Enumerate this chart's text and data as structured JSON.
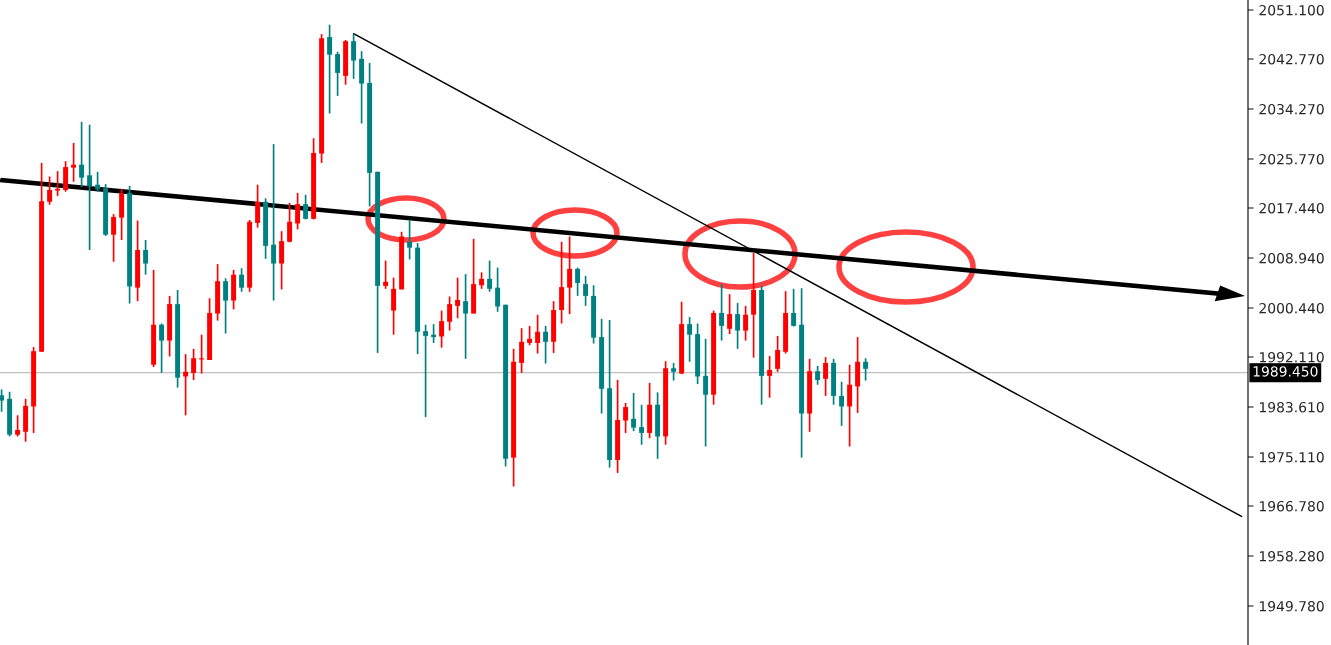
{
  "chart_data": {
    "type": "candlestick",
    "categories": [
      null,
      null,
      null,
      null,
      null,
      null,
      null,
      null,
      null,
      null,
      null,
      null,
      null,
      null,
      null,
      null,
      null,
      null,
      null,
      null,
      null,
      null,
      null,
      null,
      null,
      null,
      null,
      null,
      null,
      null,
      null,
      null,
      null,
      null,
      null,
      null,
      null,
      null,
      null,
      null,
      null,
      null,
      null,
      null,
      null,
      null,
      null,
      null,
      null,
      null,
      null,
      null,
      null,
      null,
      null,
      null,
      null,
      null,
      null,
      null,
      null,
      null,
      null,
      null,
      null,
      null,
      null,
      null,
      null,
      null,
      null,
      null,
      null,
      null,
      null,
      null,
      null,
      null,
      null,
      null,
      null,
      null,
      null,
      null,
      null,
      null,
      null,
      null,
      null,
      null,
      null,
      null,
      null,
      null,
      null,
      null,
      null,
      null,
      null,
      null,
      null,
      null,
      null,
      null,
      null,
      null,
      null,
      null,
      null,
      null,
      null,
      null,
      null,
      null,
      null,
      null,
      null,
      null,
      null,
      null,
      null,
      null,
      null,
      null,
      null,
      null,
      null,
      null,
      null,
      null,
      null,
      null,
      null,
      null,
      null,
      null,
      null,
      null,
      null,
      null,
      null,
      null,
      null,
      null,
      null,
      null,
      null,
      null,
      null,
      null,
      null,
      null,
      null,
      null,
      null,
      null
    ],
    "ohlc": [
      [
        1985.6,
        1986.6,
        1982.8,
        1984.7
      ],
      [
        1985.0,
        1986.2,
        1978.6,
        1978.9
      ],
      [
        1978.9,
        1982.2,
        1978.6,
        1979.7
      ],
      [
        1979.4,
        1985.0,
        1977.7,
        1983.8
      ],
      [
        1983.7,
        1993.8,
        1979.2,
        1993.1
      ],
      [
        1993.0,
        2025.1,
        1993.0,
        2018.6
      ],
      [
        2018.5,
        2022.8,
        2018.0,
        2020.5
      ],
      [
        2020.4,
        2023.7,
        2019.5,
        2020.7
      ],
      [
        2020.5,
        2025.4,
        2020.2,
        2024.4
      ],
      [
        2024.3,
        2028.5,
        2021.9,
        2024.8
      ],
      [
        2024.8,
        2032.1,
        2021.0,
        2022.6
      ],
      [
        2023.0,
        2031.6,
        2010.3,
        2021.1
      ],
      [
        2021.4,
        2023.6,
        2020.2,
        2020.6
      ],
      [
        2020.8,
        2021.5,
        2012.7,
        2012.9
      ],
      [
        2012.9,
        2016.4,
        2008.3,
        2015.9
      ],
      [
        2015.8,
        2020.7,
        2012.0,
        2019.9
      ],
      [
        2020.0,
        2021.2,
        2001.2,
        2004.1
      ],
      [
        2003.9,
        2015.3,
        2001.6,
        2010.3
      ],
      [
        2010.3,
        2012.0,
        2006.1,
        2008.0
      ],
      [
        1990.8,
        2006.9,
        1990.4,
        1997.6
      ],
      [
        1997.6,
        1997.8,
        1989.4,
        1994.9
      ],
      [
        1994.9,
        2002.5,
        1992.2,
        2001.1
      ],
      [
        2001.1,
        2003.5,
        1986.9,
        1988.6
      ],
      [
        1988.8,
        1992.6,
        1982.2,
        1989.6
      ],
      [
        1989.4,
        1993.5,
        1988.2,
        1991.9
      ],
      [
        1991.7,
        1995.9,
        1989.3,
        1991.9
      ],
      [
        1991.6,
        2002.1,
        1991.6,
        1999.6
      ],
      [
        1999.5,
        2007.9,
        1998.3,
        2005.0
      ],
      [
        2005.0,
        2005.5,
        1996.1,
        2001.7
      ],
      [
        2001.7,
        2006.9,
        2000.2,
        2006.1
      ],
      [
        2006.1,
        2007.2,
        2003.2,
        2003.9
      ],
      [
        2003.9,
        2015.4,
        2003.2,
        2015.1
      ],
      [
        2014.9,
        2021.4,
        2014.1,
        2018.5
      ],
      [
        2018.5,
        2019.1,
        2008.8,
        2011.0
      ],
      [
        2011.2,
        2028.3,
        2001.7,
        2008.0
      ],
      [
        2008.0,
        2013.5,
        2003.6,
        2011.8
      ],
      [
        2011.7,
        2018.3,
        2011.6,
        2015.1
      ],
      [
        2014.8,
        2020.0,
        2013.8,
        2018.1
      ],
      [
        2018.1,
        2019.7,
        2015.5,
        2015.6
      ],
      [
        2015.6,
        2029.3,
        2015.5,
        2026.8
      ],
      [
        2026.7,
        2047.0,
        2025.1,
        2046.3
      ],
      [
        2046.5,
        2048.6,
        2033.5,
        2043.5
      ],
      [
        2043.6,
        2044.0,
        2036.5,
        2040.4
      ],
      [
        2039.9,
        2046.0,
        2038.4,
        2045.8
      ],
      [
        2045.8,
        2047.1,
        2039.4,
        2042.5
      ],
      [
        2042.8,
        2044.1,
        2031.8,
        2038.6
      ],
      [
        2038.7,
        2042.1,
        2017.7,
        2023.4
      ],
      [
        2023.6,
        2023.6,
        1992.8,
        2004.2
      ],
      [
        2004.2,
        2008.5,
        2003.7,
        2004.9
      ],
      [
        2000.0,
        2005.6,
        1995.9,
        2003.7
      ],
      [
        2003.6,
        2013.4,
        2003.6,
        2012.6
      ],
      [
        2011.7,
        2015.4,
        2008.7,
        2010.7
      ],
      [
        2010.7,
        2011.5,
        1992.6,
        1996.4
      ],
      [
        1996.5,
        1997.6,
        1981.9,
        1995.7
      ],
      [
        1995.9,
        1997.7,
        1994.5,
        1995.5
      ],
      [
        1995.6,
        2000.0,
        1993.7,
        1998.2
      ],
      [
        1998.1,
        2002.4,
        1996.6,
        2001.1
      ],
      [
        2000.8,
        2005.6,
        1998.7,
        2001.8
      ],
      [
        2001.6,
        2006.2,
        1991.8,
        1999.5
      ],
      [
        1999.5,
        2012.2,
        1999.5,
        2004.5
      ],
      [
        2004.3,
        2006.5,
        2003.7,
        2005.4
      ],
      [
        2005.4,
        2008.5,
        2003.2,
        2003.7
      ],
      [
        2003.9,
        2007.3,
        1999.8,
        2000.7
      ],
      [
        2001.0,
        2001.0,
        1973.5,
        1974.8
      ],
      [
        1975.0,
        1993.5,
        1970.1,
        1991.3
      ],
      [
        1991.1,
        1997.0,
        1989.4,
        1994.7
      ],
      [
        1994.5,
        1997.4,
        1994.1,
        1995.2
      ],
      [
        1994.5,
        1999.3,
        1992.7,
        1996.4
      ],
      [
        1996.4,
        1997.4,
        1991.0,
        1994.7
      ],
      [
        1994.7,
        2001.6,
        1992.8,
        2000.1
      ],
      [
        2000.1,
        2011.7,
        1997.8,
        2004.0
      ],
      [
        2003.9,
        2012.6,
        1999.4,
        2007.1
      ],
      [
        2007.1,
        2007.3,
        2002.5,
        2004.7
      ],
      [
        2004.5,
        2005.9,
        2000.8,
        2002.5
      ],
      [
        2002.5,
        2004.3,
        1994.4,
        1995.4
      ],
      [
        1995.5,
        1998.6,
        1982.5,
        1986.7
      ],
      [
        1986.8,
        1998.4,
        1973.3,
        1974.6
      ],
      [
        1974.6,
        1988.2,
        1972.4,
        1981.4
      ],
      [
        1981.3,
        1984.3,
        1979.2,
        1983.6
      ],
      [
        1981.6,
        1986.0,
        1979.5,
        1980.1
      ],
      [
        1980.2,
        1984.0,
        1977.2,
        1979.2
      ],
      [
        1979.2,
        1987.7,
        1978.3,
        1984.0
      ],
      [
        1984.0,
        1986.1,
        1974.8,
        1978.6
      ],
      [
        1978.6,
        1991.4,
        1977.2,
        1990.2
      ],
      [
        1990.2,
        1991.1,
        1988.1,
        1989.6
      ],
      [
        1989.3,
        2001.5,
        1989.2,
        1997.7
      ],
      [
        1997.7,
        1998.9,
        1991.3,
        1995.9
      ],
      [
        1996.0,
        1997.8,
        1987.5,
        1988.8
      ],
      [
        1988.9,
        1995.2,
        1976.9,
        1985.7
      ],
      [
        1985.7,
        2000.0,
        1984.0,
        1999.6
      ],
      [
        1999.6,
        2004.5,
        1994.9,
        1997.4
      ],
      [
        1996.9,
        2002.8,
        1996.0,
        1999.4
      ],
      [
        1999.4,
        2001.3,
        1993.5,
        1996.6
      ],
      [
        1996.6,
        2000.8,
        1994.9,
        1999.3
      ],
      [
        1999.3,
        2009.8,
        1992.0,
        2003.5
      ],
      [
        2003.5,
        2004.2,
        1984.0,
        1988.9
      ],
      [
        1988.9,
        1992.3,
        1985.2,
        1989.9
      ],
      [
        1990.1,
        1995.7,
        1989.6,
        1993.3
      ],
      [
        1993.0,
        2003.3,
        1992.7,
        1999.6
      ],
      [
        1999.6,
        2003.7,
        1997.3,
        1997.4
      ],
      [
        1997.6,
        2003.8,
        1975.0,
        1982.5
      ],
      [
        1982.5,
        1991.8,
        1979.4,
        1989.7
      ],
      [
        1989.7,
        1990.6,
        1987.4,
        1988.2
      ],
      [
        1988.4,
        1992.1,
        1985.5,
        1991.1
      ],
      [
        1991.1,
        1991.8,
        1984.0,
        1985.5
      ],
      [
        1985.5,
        1987.9,
        1980.4,
        1983.7
      ],
      [
        1983.7,
        1990.8,
        1976.9,
        1987.4
      ],
      [
        1987.1,
        1995.5,
        1982.6,
        1991.3
      ],
      [
        1991.3,
        1991.9,
        1988.1,
        1990.1
      ],
      null,
      null,
      null,
      null,
      null,
      null,
      null,
      null,
      null,
      null,
      null,
      null,
      null,
      null,
      null,
      null,
      null,
      null,
      null,
      null,
      null,
      null,
      null,
      null,
      null,
      null,
      null,
      null,
      null,
      null,
      null,
      null,
      null,
      null,
      null,
      null,
      null,
      null,
      null,
      null,
      null,
      null,
      null,
      null,
      null,
      null,
      null
    ],
    "colors": [
      "#008080",
      "#008080",
      "#ff0000",
      "#ff0000",
      "#ff0000",
      "#ff0000",
      "#ff0000",
      "#ff0000",
      "#ff0000",
      "#ff0000",
      "#008080",
      "#008080",
      "#008080",
      "#008080",
      "#ff0000",
      "#ff0000",
      "#008080",
      "#ff0000",
      "#008080",
      "#ff0000",
      "#008080",
      "#ff0000",
      "#008080",
      "#ff0000",
      "#ff0000",
      "#ff0000",
      "#ff0000",
      "#ff0000",
      "#008080",
      "#ff0000",
      "#008080",
      "#ff0000",
      "#ff0000",
      "#008080",
      "#008080",
      "#ff0000",
      "#ff0000",
      "#ff0000",
      "#008080",
      "#ff0000",
      "#ff0000",
      "#008080",
      "#008080",
      "#ff0000",
      "#008080",
      "#008080",
      "#008080",
      "#008080",
      "#ff0000",
      "#ff0000",
      "#ff0000",
      "#008080",
      "#008080",
      "#008080",
      "#008080",
      "#ff0000",
      "#ff0000",
      "#ff0000",
      "#008080",
      "#ff0000",
      "#ff0000",
      "#008080",
      "#008080",
      "#008080",
      "#ff0000",
      "#ff0000",
      "#ff0000",
      "#ff0000",
      "#008080",
      "#ff0000",
      "#ff0000",
      "#ff0000",
      "#008080",
      "#008080",
      "#008080",
      "#008080",
      "#008080",
      "#ff0000",
      "#ff0000",
      "#008080",
      "#008080",
      "#ff0000",
      "#008080",
      "#ff0000",
      "#008080",
      "#ff0000",
      "#008080",
      "#008080",
      "#008080",
      "#ff0000",
      "#008080",
      "#ff0000",
      "#008080",
      "#ff0000",
      "#ff0000",
      "#008080",
      "#ff0000",
      "#ff0000",
      "#ff0000",
      "#008080",
      "#008080",
      "#ff0000",
      "#008080",
      "#ff0000",
      "#008080",
      "#008080",
      "#ff0000",
      "#ff0000",
      "#008080",
      null,
      null,
      null,
      null,
      null,
      null,
      null,
      null,
      null,
      null,
      null,
      null,
      null,
      null,
      null,
      null,
      null,
      null,
      null,
      null,
      null,
      null,
      null,
      null,
      null,
      null,
      null,
      null,
      null,
      null,
      null,
      null,
      null,
      null,
      null,
      null,
      null,
      null,
      null,
      null,
      null,
      null,
      null,
      null,
      null,
      null,
      null
    ],
    "series": [
      {
        "type": "line",
        "color": "#000000",
        "values": [
          null,
          null,
          null,
          null,
          null,
          null,
          null,
          null,
          null,
          null,
          null,
          null,
          null,
          null,
          null,
          null,
          null,
          null,
          null,
          null,
          null,
          null,
          null,
          null,
          null,
          null,
          null,
          null,
          null,
          null,
          null,
          null,
          null,
          null,
          null,
          null,
          null,
          null,
          null,
          null,
          null,
          null,
          null,
          null,
          2047.1,
          null,
          null,
          null,
          null,
          null,
          null,
          null,
          null,
          null,
          null,
          null,
          null,
          null,
          null,
          null,
          null,
          null,
          null,
          null,
          null,
          null,
          null,
          null,
          null,
          null,
          null,
          null,
          null,
          null,
          null,
          null,
          null,
          null,
          null,
          null,
          null,
          null,
          null,
          null,
          null,
          null,
          null,
          null,
          null,
          null,
          null,
          null,
          null,
          null,
          null,
          null,
          null,
          null,
          null,
          null,
          null,
          null,
          null,
          null,
          null,
          null,
          null,
          null,
          null,
          null,
          null,
          null,
          null,
          null,
          null,
          null,
          null,
          null,
          null,
          null,
          null,
          null,
          null,
          null,
          null,
          null,
          null,
          null,
          null,
          null,
          null,
          null,
          null,
          null,
          null,
          null,
          null,
          null,
          null,
          null,
          null,
          null,
          null,
          null,
          null,
          null,
          null,
          null,
          null,
          null,
          null,
          null,
          null,
          null,
          null,
          1965.0
        ]
      }
    ],
    "ylim": [
      1943.15,
      2052.8
    ],
    "yticks": [
      {
        "value": 1949.78,
        "label": "1949.780"
      },
      {
        "value": 1958.28,
        "label": "1958.280"
      },
      {
        "value": 1966.78,
        "label": "1966.780"
      },
      {
        "value": 1975.11,
        "label": "1975.110"
      },
      {
        "value": 1983.61,
        "label": "1983.610"
      },
      {
        "value": 1992.11,
        "label": "1992.110"
      },
      {
        "value": 2000.44,
        "label": "2000.440"
      },
      {
        "value": 2008.94,
        "label": "2008.940"
      },
      {
        "value": 2017.44,
        "label": "2017.440"
      },
      {
        "value": 2025.77,
        "label": "2025.770"
      },
      {
        "value": 2034.27,
        "label": "2034.270"
      },
      {
        "value": 2042.77,
        "label": "2042.770"
      },
      {
        "value": 2051.1,
        "label": "2051.100"
      }
    ],
    "ref_lines": [
      {
        "axis": "y",
        "value": 1989.45,
        "label": "1989.450",
        "color": "#c0c0c0"
      }
    ],
    "tick_labels": "y",
    "grid": false,
    "legend": false
  }
}
